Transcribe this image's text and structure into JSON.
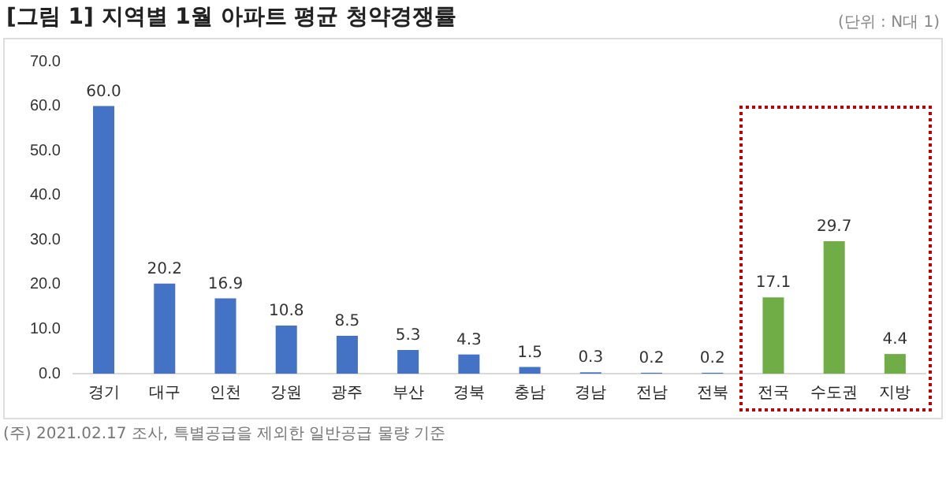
{
  "chart_data": {
    "type": "bar",
    "title": "[그림 1] 지역별 1월 아파트 평균 청약경쟁률",
    "subtitle": "(단위 : N대 1)",
    "categories": [
      "경기",
      "대구",
      "인천",
      "강원",
      "광주",
      "부산",
      "경북",
      "충남",
      "경남",
      "전남",
      "전북",
      "전국",
      "수도권",
      "지방"
    ],
    "values": [
      60.0,
      20.2,
      16.9,
      10.8,
      8.5,
      5.3,
      4.3,
      1.5,
      0.3,
      0.2,
      0.2,
      17.1,
      29.7,
      4.4
    ],
    "colors": [
      "#4472c4",
      "#4472c4",
      "#4472c4",
      "#4472c4",
      "#4472c4",
      "#4472c4",
      "#4472c4",
      "#4472c4",
      "#4472c4",
      "#4472c4",
      "#4472c4",
      "#70ad47",
      "#70ad47",
      "#70ad47"
    ],
    "value_labels": [
      "60.0",
      "20.2",
      "16.9",
      "10.8",
      "8.5",
      "5.3",
      "4.3",
      "1.5",
      "0.3",
      "0.2",
      "0.2",
      "17.1",
      "29.7",
      "4.4"
    ],
    "ylim": [
      0,
      70
    ],
    "yticks": [
      {
        "value": 0,
        "label": "0.0"
      },
      {
        "value": 10,
        "label": "10.0"
      },
      {
        "value": 20,
        "label": "20.0"
      },
      {
        "value": 30,
        "label": "30.0"
      },
      {
        "value": 40,
        "label": "40.0"
      },
      {
        "value": 50,
        "label": "50.0"
      },
      {
        "value": 60,
        "label": "60.0"
      },
      {
        "value": 70,
        "label": "70.0"
      }
    ],
    "grid": false,
    "legend": false,
    "annotations": [
      "(주) 2021.02.17 조사, 특별공급을 제외한 일반공급 물량 기준"
    ]
  }
}
